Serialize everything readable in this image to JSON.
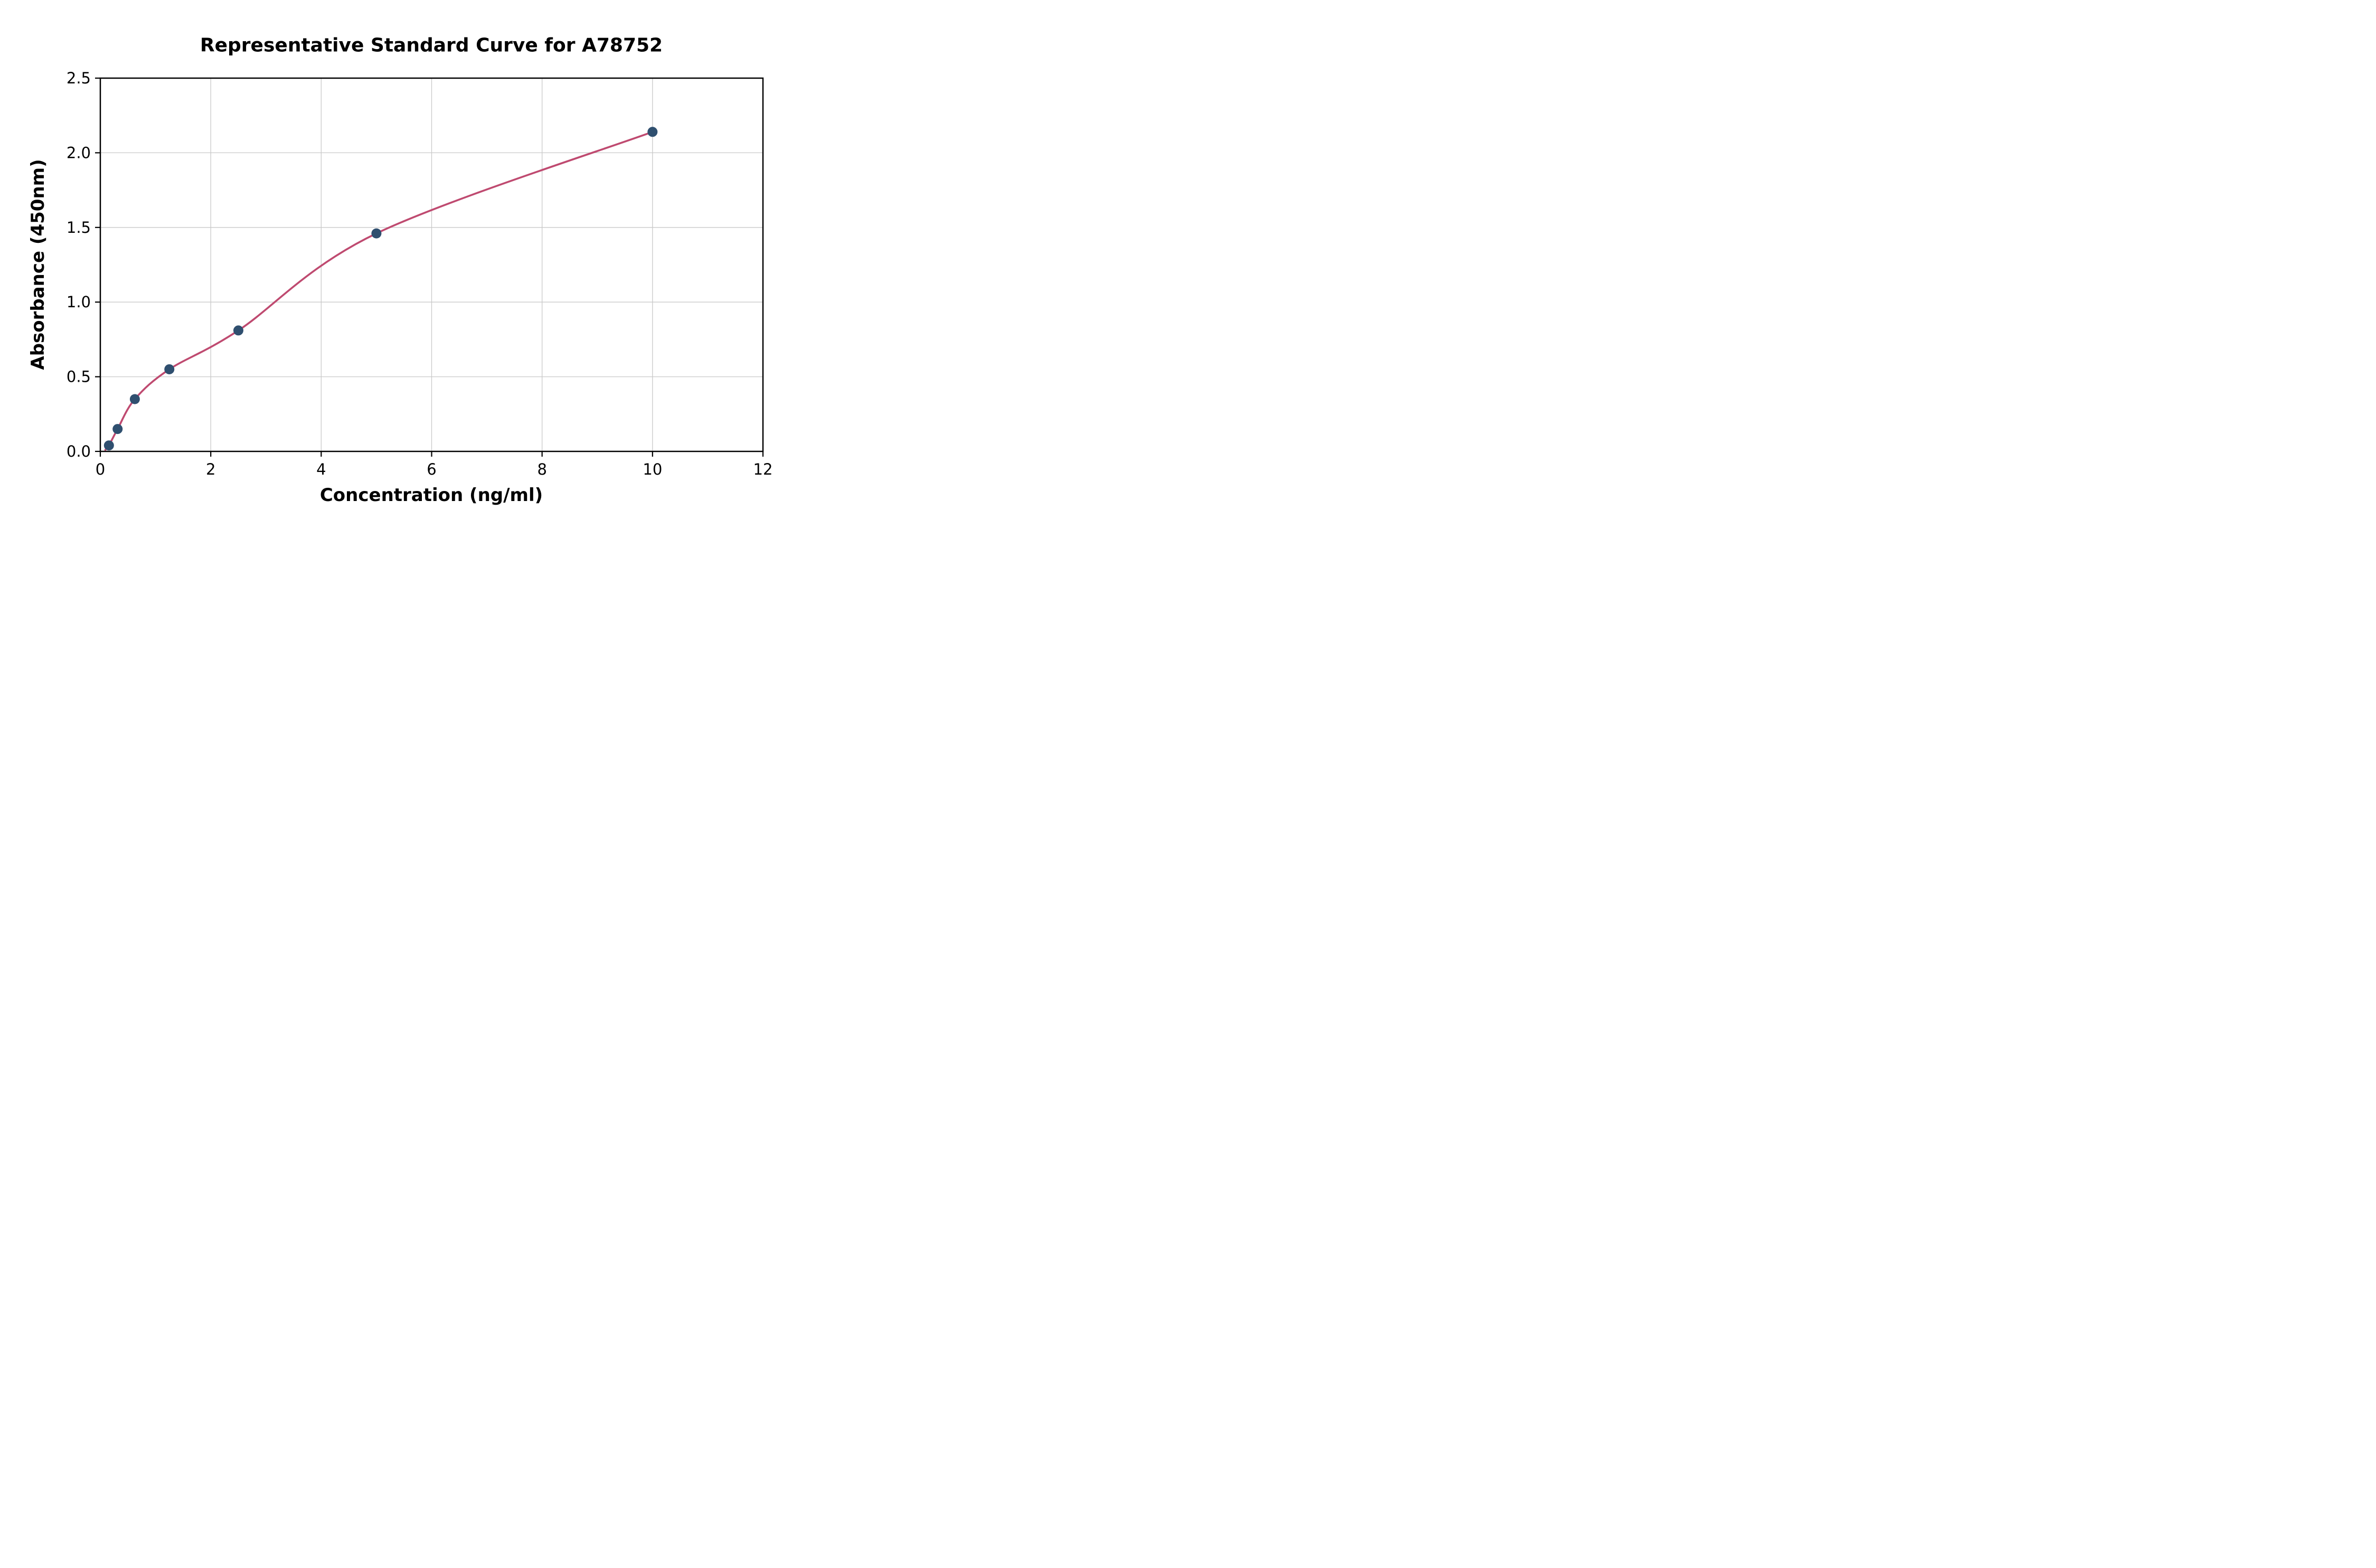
{
  "page": {
    "background": "#ffffff"
  },
  "chart_data": {
    "type": "scatter",
    "title": "Representative Standard Curve for A78752",
    "xlabel": "Concentration (ng/ml)",
    "ylabel": "Absorbance (450nm)",
    "xlim": [
      0,
      12
    ],
    "ylim": [
      0,
      2.5
    ],
    "grid": true,
    "legend_position": "none",
    "xticks": {
      "values": [
        0,
        2,
        4,
        6,
        8,
        10,
        12
      ],
      "labels": [
        "0",
        "2",
        "4",
        "6",
        "8",
        "10",
        "12"
      ]
    },
    "yticks": {
      "values": [
        0,
        0.5,
        1.0,
        1.5,
        2.0,
        2.5
      ],
      "labels": [
        "0.0",
        "0.5",
        "1.0",
        "1.5",
        "2.0",
        "2.5"
      ]
    },
    "series": [
      {
        "name": "standard-points",
        "type": "scatter",
        "marker": "circle",
        "color": "#2f4f6f",
        "points": [
          [
            0.156,
            0.04
          ],
          [
            0.313,
            0.15
          ],
          [
            0.625,
            0.35
          ],
          [
            1.25,
            0.55
          ],
          [
            2.5,
            0.81
          ],
          [
            5.0,
            1.46
          ],
          [
            10.0,
            2.14
          ]
        ]
      },
      {
        "name": "fit-curve",
        "type": "line",
        "color": "#bf4a70",
        "curve_start": [
          0.09,
          0.01
        ]
      }
    ],
    "colors": {
      "grid": "#c9c9c9",
      "axis": "#000000",
      "background": "#ffffff"
    }
  }
}
